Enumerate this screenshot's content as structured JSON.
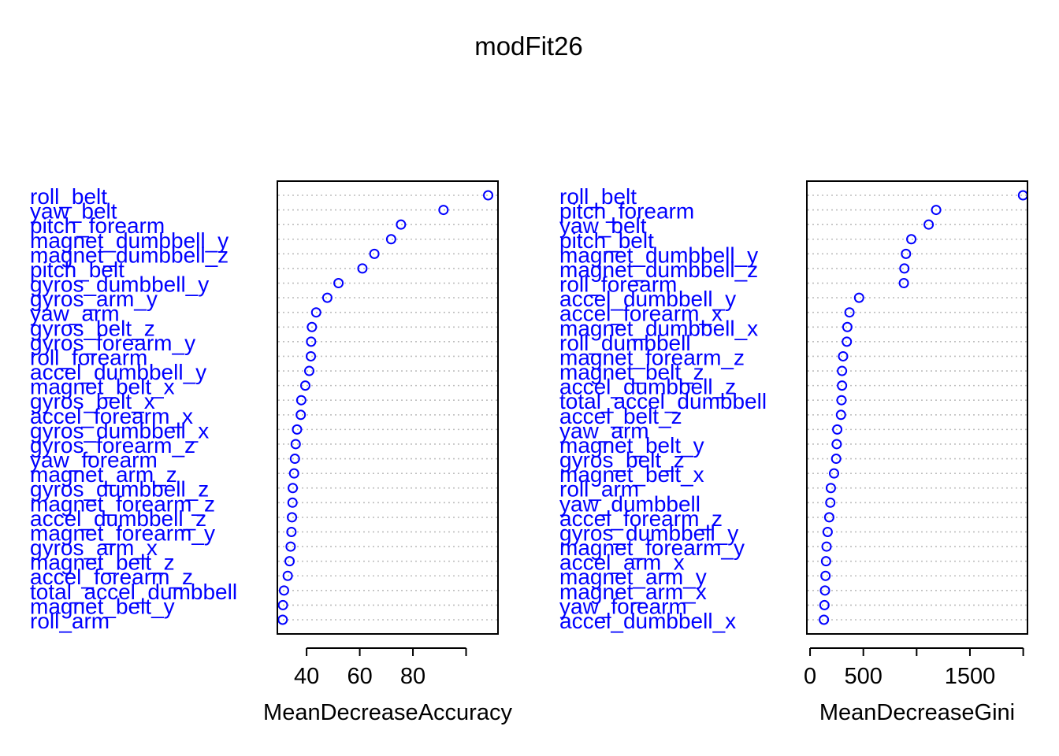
{
  "title": "modFit26",
  "colors": {
    "labels": "#0000ff",
    "points": "#0000ff",
    "axis": "#000000",
    "grid": "#bebebe"
  },
  "chart_data": [
    {
      "type": "scatter",
      "style": "dotchart",
      "xlabel": "MeanDecreaseAccuracy",
      "xlim": [
        29,
        112
      ],
      "x_ticks": [
        40,
        60,
        80,
        100
      ],
      "x_tick_labels": [
        "40",
        "60",
        "80",
        ""
      ],
      "grid": true,
      "categories": [
        "roll_belt",
        "yaw_belt",
        "pitch_forearm",
        "magnet_dumbbell_y",
        "magnet_dumbbell_z",
        "pitch_belt",
        "gyros_dumbbell_y",
        "gyros_arm_y",
        "yaw_arm",
        "gyros_belt_z",
        "gyros_forearm_y",
        "roll_forearm",
        "accel_dumbbell_y",
        "magnet_belt_x",
        "gyros_belt_x",
        "accel_forearm_x",
        "gyros_dumbbell_x",
        "gyros_forearm_z",
        "yaw_forearm",
        "magnet_arm_z",
        "gyros_dumbbell_z",
        "magnet_forearm_z",
        "accel_dumbbell_z",
        "magnet_forearm_y",
        "gyros_arm_x",
        "magnet_belt_z",
        "accel_forearm_z",
        "total_accel_dumbbell",
        "magnet_belt_y",
        "roll_arm"
      ],
      "values": [
        108.3,
        91.5,
        75.5,
        71.8,
        65.5,
        61.0,
        52.0,
        47.8,
        43.6,
        42.0,
        41.7,
        41.6,
        41.0,
        39.5,
        38.0,
        37.8,
        36.4,
        35.9,
        35.6,
        35.3,
        34.8,
        34.7,
        34.5,
        34.3,
        34.0,
        33.6,
        32.9,
        31.5,
        31.1,
        31.0
      ]
    },
    {
      "type": "scatter",
      "style": "dotchart",
      "xlabel": "MeanDecreaseGini",
      "xlim": [
        -30,
        2040
      ],
      "x_ticks": [
        0,
        500,
        1000,
        1500,
        2000
      ],
      "x_tick_labels": [
        "0",
        "500",
        "",
        "1500",
        ""
      ],
      "grid": true,
      "categories": [
        "roll_belt",
        "pitch_forearm",
        "yaw_belt",
        "pitch_belt",
        "magnet_dumbbell_y",
        "magnet_dumbbell_z",
        "roll_forearm",
        "accel_dumbbell_y",
        "accel_forearm_x",
        "magnet_dumbbell_x",
        "roll_dumbbell",
        "magnet_forearm_z",
        "magnet_belt_z",
        "accel_dumbbell_z",
        "total_accel_dumbbell",
        "accel_belt_z",
        "yaw_arm",
        "magnet_belt_y",
        "gyros_belt_z",
        "magnet_belt_x",
        "roll_arm",
        "yaw_dumbbell",
        "accel_forearm_z",
        "gyros_dumbbell_y",
        "magnet_forearm_y",
        "accel_arm_x",
        "magnet_arm_y",
        "magnet_arm_x",
        "yaw_forearm",
        "accel_dumbbell_x"
      ],
      "values": [
        1998,
        1183,
        1113,
        950,
        900,
        885,
        880,
        460,
        370,
        350,
        345,
        310,
        300,
        300,
        295,
        290,
        255,
        250,
        245,
        225,
        195,
        190,
        180,
        165,
        155,
        150,
        145,
        140,
        135,
        130
      ]
    }
  ]
}
